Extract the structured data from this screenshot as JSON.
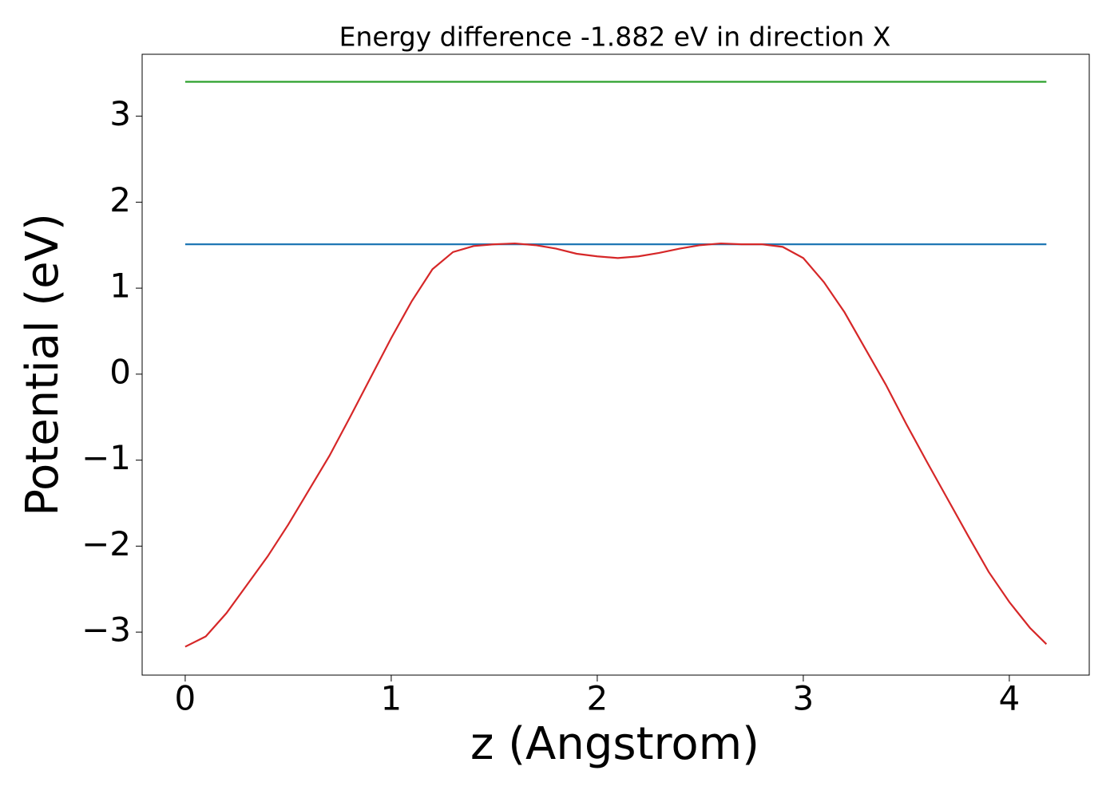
{
  "chart_data": {
    "type": "line",
    "title": "Energy difference -1.882 eV in direction X",
    "x_label": "z (Angstrom)",
    "y_label": "Potential (eV)",
    "x": [
      0,
      0.1,
      0.2,
      0.3,
      0.4,
      0.5,
      0.6,
      0.7,
      0.8,
      0.9,
      1.0,
      1.1,
      1.2,
      1.3,
      1.4,
      1.5,
      1.6,
      1.7,
      1.8,
      1.9,
      2.0,
      2.1,
      2.2,
      2.3,
      2.4,
      2.5,
      2.6,
      2.7,
      2.8,
      2.9,
      3.0,
      3.1,
      3.2,
      3.3,
      3.4,
      3.5,
      3.6,
      3.7,
      3.8,
      3.9,
      4.0,
      4.1,
      4.18
    ],
    "series": [
      {
        "color": "#2ca02c",
        "values": [
          3.4,
          3.4,
          3.4,
          3.4,
          3.4,
          3.4,
          3.4,
          3.4,
          3.4,
          3.4,
          3.4,
          3.4,
          3.4,
          3.4,
          3.4,
          3.4,
          3.4,
          3.4,
          3.4,
          3.4,
          3.4,
          3.4,
          3.4,
          3.4,
          3.4,
          3.4,
          3.4,
          3.4,
          3.4,
          3.4,
          3.4,
          3.4,
          3.4,
          3.4,
          3.4,
          3.4,
          3.4,
          3.4,
          3.4,
          3.4,
          3.4,
          3.4,
          3.4
        ]
      },
      {
        "color": "#1f77b4",
        "values": [
          1.51,
          1.51,
          1.51,
          1.51,
          1.51,
          1.51,
          1.51,
          1.51,
          1.51,
          1.51,
          1.51,
          1.51,
          1.51,
          1.51,
          1.51,
          1.51,
          1.51,
          1.51,
          1.51,
          1.51,
          1.51,
          1.51,
          1.51,
          1.51,
          1.51,
          1.51,
          1.51,
          1.51,
          1.51,
          1.51,
          1.51,
          1.51,
          1.51,
          1.51,
          1.51,
          1.51,
          1.51,
          1.51,
          1.51,
          1.51,
          1.51,
          1.51,
          1.51
        ]
      },
      {
        "color": "#d62728",
        "values": [
          -3.17,
          -3.05,
          -2.78,
          -2.45,
          -2.12,
          -1.75,
          -1.35,
          -0.95,
          -0.5,
          -0.04,
          0.42,
          0.85,
          1.22,
          1.42,
          1.49,
          1.51,
          1.52,
          1.5,
          1.46,
          1.4,
          1.37,
          1.35,
          1.37,
          1.41,
          1.46,
          1.5,
          1.52,
          1.51,
          1.51,
          1.48,
          1.35,
          1.07,
          0.72,
          0.3,
          -0.12,
          -0.58,
          -1.02,
          -1.45,
          -1.88,
          -2.3,
          -2.65,
          -2.95,
          -3.14
        ]
      }
    ],
    "xlim": [
      -0.209,
      4.388
    ],
    "ylim": [
      -3.5,
      3.72
    ],
    "xticks": [
      0,
      1,
      2,
      3,
      4
    ],
    "yticks": [
      {
        "value": -3,
        "label": "−3"
      },
      {
        "value": -2,
        "label": "−2"
      },
      {
        "value": -1,
        "label": "−1"
      },
      0,
      1,
      2,
      3
    ]
  }
}
